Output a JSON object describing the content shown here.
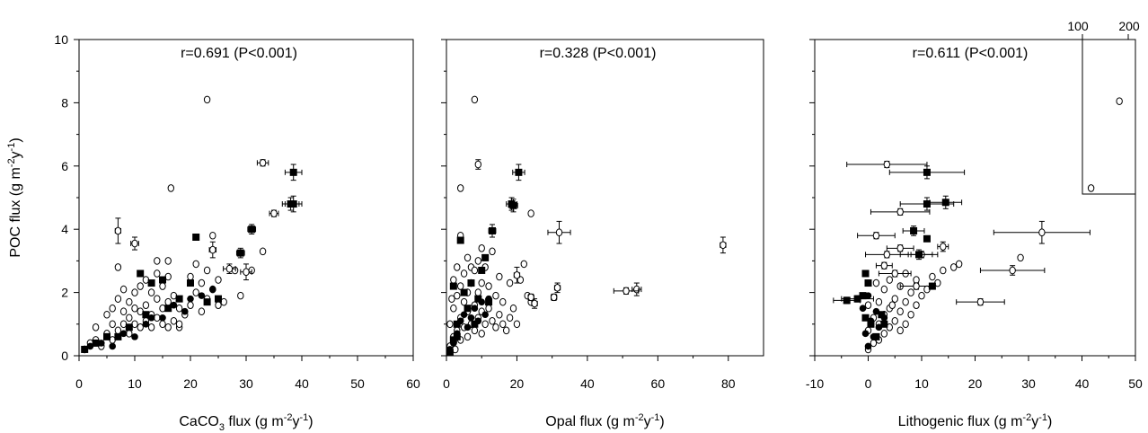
{
  "colors": {
    "axis": "#000000",
    "marker_fill_solid": "#000000",
    "marker_fill_open": "#ffffff"
  },
  "ylabel": {
    "main": "POC flux (g m",
    "sup1": "-2",
    "mid": "y",
    "sup2": "-1",
    "end": ")"
  },
  "chart_data": [
    {
      "type": "scatter",
      "stat": "r=0.691 (P<0.001)",
      "xlabel": {
        "pre": "CaCO",
        "sub": "3",
        "main": " flux (g m",
        "sup1": "-2",
        "mid": "y",
        "sup2": "-1",
        "end": ")"
      },
      "xlim": [
        0,
        60
      ],
      "ylim": [
        0,
        10
      ],
      "xticks": [
        0,
        10,
        20,
        30,
        40,
        50,
        60
      ],
      "yticks": [
        0,
        2,
        4,
        6,
        8,
        10
      ],
      "ytick_labels": [
        "0",
        "2",
        "4",
        "6",
        "8",
        "10"
      ],
      "open_circles": [
        [
          1,
          0.2
        ],
        [
          2,
          0.4
        ],
        [
          3,
          0.5
        ],
        [
          3,
          0.9
        ],
        [
          4,
          0.3
        ],
        [
          5,
          0.7
        ],
        [
          5,
          1.3
        ],
        [
          6,
          0.5
        ],
        [
          6,
          1.0
        ],
        [
          6,
          1.5
        ],
        [
          7,
          0.8
        ],
        [
          7,
          1.8
        ],
        [
          8,
          1.0
        ],
        [
          8,
          1.4
        ],
        [
          8,
          2.1
        ],
        [
          9,
          0.7
        ],
        [
          9,
          1.2
        ],
        [
          9,
          1.7
        ],
        [
          10,
          1.0
        ],
        [
          10,
          1.5
        ],
        [
          10,
          2.0
        ],
        [
          11,
          0.9
        ],
        [
          11,
          1.4
        ],
        [
          11,
          2.2
        ],
        [
          12,
          1.1
        ],
        [
          12,
          1.6
        ],
        [
          12,
          2.4
        ],
        [
          13,
          0.9
        ],
        [
          13,
          1.3
        ],
        [
          13,
          2.0
        ],
        [
          14,
          1.2
        ],
        [
          14,
          1.8
        ],
        [
          14,
          2.6
        ],
        [
          15,
          1.0
        ],
        [
          15,
          1.5
        ],
        [
          15,
          2.2
        ],
        [
          16,
          0.9
        ],
        [
          16,
          1.7
        ],
        [
          16,
          2.5
        ],
        [
          16,
          3.0
        ],
        [
          17,
          1.1
        ],
        [
          17,
          1.9
        ],
        [
          18,
          0.9
        ],
        [
          18,
          1.5
        ],
        [
          19,
          1.3
        ],
        [
          20,
          1.6
        ],
        [
          20,
          2.5
        ],
        [
          21,
          2.0
        ],
        [
          21,
          2.9
        ],
        [
          22,
          1.4
        ],
        [
          22,
          2.3
        ],
        [
          23,
          1.8
        ],
        [
          23,
          2.7
        ],
        [
          24,
          2.1
        ],
        [
          25,
          1.6
        ],
        [
          25,
          2.4
        ],
        [
          26,
          1.7
        ],
        [
          28,
          2.7
        ],
        [
          29,
          1.9
        ],
        [
          31,
          2.7
        ],
        [
          33,
          3.3
        ],
        [
          24,
          3.8
        ],
        [
          16.5,
          5.3
        ],
        [
          23,
          8.1
        ],
        [
          18,
          1.0
        ],
        [
          7,
          2.8
        ],
        [
          14,
          3.0
        ]
      ],
      "open_err": [
        [
          7,
          3.95,
          0.5,
          0.4
        ],
        [
          10,
          3.55,
          0.7,
          0.2
        ],
        [
          33,
          6.1,
          1.0,
          0.1
        ],
        [
          24,
          3.35,
          0.6,
          0.25
        ],
        [
          30,
          2.65,
          1.0,
          0.25
        ],
        [
          27,
          2.75,
          1.1,
          0.15
        ],
        [
          35,
          4.5,
          0.8,
          0.1
        ]
      ],
      "solid_squares": [
        [
          1,
          0.2
        ],
        [
          3,
          0.4
        ],
        [
          5,
          0.6
        ],
        [
          7,
          0.6
        ],
        [
          9,
          0.9
        ],
        [
          11,
          2.6
        ],
        [
          12,
          1.3
        ],
        [
          13,
          2.3
        ],
        [
          15,
          2.4
        ],
        [
          16,
          1.5
        ],
        [
          18,
          1.8
        ],
        [
          20,
          2.3
        ],
        [
          21,
          3.75
        ],
        [
          23,
          1.7
        ],
        [
          25,
          1.8
        ]
      ],
      "solid_squares_err": [
        [
          31,
          4.0,
          0.7,
          0.15
        ],
        [
          29,
          3.25,
          0.7,
          0.15
        ],
        [
          38.5,
          5.8,
          1.5,
          0.25
        ],
        [
          38.5,
          4.8,
          1.5,
          0.25
        ],
        [
          38,
          4.8,
          1.5,
          0.2
        ]
      ],
      "solid_circles": [
        [
          2,
          0.3
        ],
        [
          4,
          0.4
        ],
        [
          6,
          0.3
        ],
        [
          8,
          0.7
        ],
        [
          10,
          0.6
        ],
        [
          12,
          1.0
        ],
        [
          13,
          1.2
        ],
        [
          15,
          1.2
        ],
        [
          17,
          1.6
        ],
        [
          19,
          1.4
        ],
        [
          20,
          1.8
        ],
        [
          22,
          1.9
        ],
        [
          24,
          2.1
        ]
      ]
    },
    {
      "type": "scatter",
      "stat": "r=0.328 (P<0.001)",
      "xlabel": {
        "pre": "Opal",
        "sub": "",
        "main": " flux (g m",
        "sup1": "-2",
        "mid": "y",
        "sup2": "-1",
        "end": ")"
      },
      "xlim": [
        0,
        90
      ],
      "ylim": [
        0,
        10
      ],
      "xticks": [
        0,
        20,
        40,
        60,
        80
      ],
      "yticks": [
        0,
        2,
        4,
        6,
        8,
        10
      ],
      "open_circles": [
        [
          1,
          0.3
        ],
        [
          1,
          1.0
        ],
        [
          2,
          0.6
        ],
        [
          2,
          1.5
        ],
        [
          2,
          2.4
        ],
        [
          3,
          0.8
        ],
        [
          3,
          1.9
        ],
        [
          3,
          2.8
        ],
        [
          4,
          0.5
        ],
        [
          4,
          1.2
        ],
        [
          4,
          2.2
        ],
        [
          5,
          0.9
        ],
        [
          5,
          1.7
        ],
        [
          5,
          2.6
        ],
        [
          6,
          0.6
        ],
        [
          6,
          1.4
        ],
        [
          6,
          2.0
        ],
        [
          6,
          3.1
        ],
        [
          7,
          1.0
        ],
        [
          7,
          2.3
        ],
        [
          7,
          2.8
        ],
        [
          8,
          0.8
        ],
        [
          8,
          1.6
        ],
        [
          8,
          2.7
        ],
        [
          9,
          1.2
        ],
        [
          9,
          2.0
        ],
        [
          9,
          3.0
        ],
        [
          10,
          0.7
        ],
        [
          10,
          1.4
        ],
        [
          10,
          2.3
        ],
        [
          11,
          1.0
        ],
        [
          11,
          2.8
        ],
        [
          12,
          1.5
        ],
        [
          12,
          2.2
        ],
        [
          13,
          1.1
        ],
        [
          13,
          3.3
        ],
        [
          14,
          0.9
        ],
        [
          14,
          1.9
        ],
        [
          15,
          1.3
        ],
        [
          15,
          2.5
        ],
        [
          16,
          1.0
        ],
        [
          16,
          1.7
        ],
        [
          17,
          0.8
        ],
        [
          18,
          1.2
        ],
        [
          18,
          2.3
        ],
        [
          19,
          1.5
        ],
        [
          20,
          1.0
        ],
        [
          21,
          2.4
        ],
        [
          22,
          2.9
        ],
        [
          23,
          1.9
        ],
        [
          24,
          1.7
        ],
        [
          24,
          4.5
        ],
        [
          8,
          8.1
        ],
        [
          4,
          5.3
        ],
        [
          2.5,
          0.2
        ],
        [
          1.5,
          1.8
        ],
        [
          4,
          3.8
        ],
        [
          10,
          3.4
        ]
      ],
      "open_err": [
        [
          9,
          6.05,
          0.6,
          0.15
        ],
        [
          32,
          3.9,
          3.2,
          0.35
        ],
        [
          78.5,
          3.5,
          0.8,
          0.25
        ],
        [
          54,
          2.1,
          1.3,
          0.2
        ],
        [
          51,
          2.05,
          3.5,
          0.1
        ],
        [
          31.5,
          2.15,
          0.8,
          0.15
        ],
        [
          30.5,
          1.85,
          0.8,
          0.1
        ],
        [
          25,
          1.65,
          0.8,
          0.15
        ],
        [
          20,
          2.55,
          0.8,
          0.25
        ],
        [
          24,
          1.85,
          0.8,
          0.1
        ]
      ],
      "solid_squares": [
        [
          1,
          0.1
        ],
        [
          2,
          0.5
        ],
        [
          3,
          1.0
        ],
        [
          4,
          3.65
        ],
        [
          5,
          2.0
        ],
        [
          6,
          1.5
        ],
        [
          7,
          2.3
        ],
        [
          8,
          1.0
        ],
        [
          9,
          1.8
        ],
        [
          10,
          2.7
        ],
        [
          11,
          3.1
        ],
        [
          12,
          1.7
        ],
        [
          2,
          2.2
        ],
        [
          3,
          0.6
        ]
      ],
      "solid_squares_err": [
        [
          20.5,
          5.8,
          1.7,
          0.25
        ],
        [
          18.5,
          4.8,
          1.5,
          0.2
        ],
        [
          19,
          4.75,
          1.2,
          0.2
        ],
        [
          13,
          3.95,
          1.0,
          0.2
        ]
      ],
      "solid_circles": [
        [
          1,
          0.2
        ],
        [
          2,
          0.4
        ],
        [
          3,
          0.7
        ],
        [
          4,
          1.1
        ],
        [
          5,
          1.3
        ],
        [
          6,
          0.9
        ],
        [
          7,
          1.2
        ],
        [
          8,
          1.5
        ],
        [
          9,
          1.1
        ],
        [
          10,
          1.7
        ],
        [
          11,
          1.3
        ],
        [
          12,
          1.8
        ]
      ]
    },
    {
      "type": "scatter",
      "stat": "r=0.611 (P<0.001)",
      "xlabel": {
        "pre": "Lithogenic",
        "sub": "",
        "main": " flux (g m",
        "sup1": "-2",
        "mid": "y",
        "sup2": "-1",
        "end": ")"
      },
      "xlim": [
        -10,
        50
      ],
      "ylim": [
        0,
        10
      ],
      "xticks": [
        -10,
        0,
        10,
        20,
        30,
        40,
        50
      ],
      "yticks": [
        0,
        2,
        4,
        6,
        8,
        10
      ],
      "inset_labels": [
        "100",
        "200"
      ],
      "inset_points": [
        [
          41.7,
          5.3
        ],
        [
          47,
          8.05
        ]
      ],
      "open_circles": [
        [
          0,
          0.2
        ],
        [
          1,
          0.4
        ],
        [
          0,
          0.8
        ],
        [
          1,
          1.2
        ],
        [
          0,
          1.6
        ],
        [
          2,
          0.5
        ],
        [
          2,
          1.0
        ],
        [
          2,
          1.7
        ],
        [
          3,
          0.7
        ],
        [
          3,
          1.3
        ],
        [
          3,
          2.1
        ],
        [
          4,
          0.9
        ],
        [
          4,
          1.5
        ],
        [
          4,
          2.4
        ],
        [
          5,
          1.1
        ],
        [
          5,
          1.8
        ],
        [
          6,
          0.8
        ],
        [
          6,
          1.4
        ],
        [
          6,
          2.2
        ],
        [
          7,
          1.0
        ],
        [
          7,
          1.7
        ],
        [
          7,
          2.6
        ],
        [
          8,
          1.3
        ],
        [
          8,
          2.0
        ],
        [
          9,
          1.6
        ],
        [
          9,
          2.4
        ],
        [
          10,
          1.9
        ],
        [
          11,
          2.1
        ],
        [
          12,
          2.5
        ],
        [
          13,
          2.3
        ],
        [
          14,
          2.7
        ],
        [
          16,
          2.8
        ],
        [
          17,
          2.9
        ],
        [
          28.5,
          3.1
        ],
        [
          1.5,
          2.3
        ],
        [
          4.5,
          1.6
        ]
      ],
      "open_err": [
        [
          3.5,
          6.05,
          7.5,
          0.1
        ],
        [
          6,
          4.55,
          5.5,
          0.1
        ],
        [
          1.5,
          3.8,
          3.5,
          0.1
        ],
        [
          3.5,
          3.2,
          4.0,
          0.1
        ],
        [
          3,
          2.85,
          1.5,
          0.1
        ],
        [
          5,
          2.6,
          3.0,
          0.1
        ],
        [
          9,
          2.2,
          3.0,
          0.1
        ],
        [
          32.5,
          3.9,
          9.0,
          0.35
        ],
        [
          27,
          2.7,
          6.0,
          0.15
        ],
        [
          21,
          1.7,
          4.5,
          0.1
        ],
        [
          14,
          3.45,
          1.0,
          0.15
        ],
        [
          10,
          3.2,
          2.0,
          0.1
        ],
        [
          6,
          3.4,
          2.5,
          0.1
        ]
      ],
      "solid_squares": [
        [
          -0.5,
          1.2
        ],
        [
          -1,
          1.9
        ],
        [
          0,
          2.3
        ],
        [
          -0.5,
          2.6
        ],
        [
          0.5,
          1.0
        ],
        [
          1.5,
          0.6
        ],
        [
          2.5,
          1.3
        ],
        [
          3,
          1.0
        ],
        [
          11,
          3.7
        ],
        [
          12,
          2.2
        ]
      ],
      "solid_squares_err": [
        [
          11,
          5.8,
          7.0,
          0.2
        ],
        [
          11,
          4.8,
          5.0,
          0.2
        ],
        [
          14.5,
          4.85,
          3.0,
          0.2
        ],
        [
          8.5,
          3.95,
          2.0,
          0.15
        ],
        [
          9.5,
          3.2,
          3.5,
          0.15
        ],
        [
          -2,
          1.8,
          3.0,
          0.1
        ],
        [
          -4,
          1.75,
          2.5,
          0.1
        ]
      ],
      "solid_circles": [
        [
          0,
          0.3
        ],
        [
          1,
          0.6
        ],
        [
          0.5,
          1.1
        ],
        [
          -1,
          1.5
        ],
        [
          0,
          1.9
        ],
        [
          1.5,
          1.4
        ],
        [
          2,
          0.9
        ],
        [
          3,
          1.2
        ],
        [
          -0.5,
          0.7
        ]
      ]
    }
  ]
}
